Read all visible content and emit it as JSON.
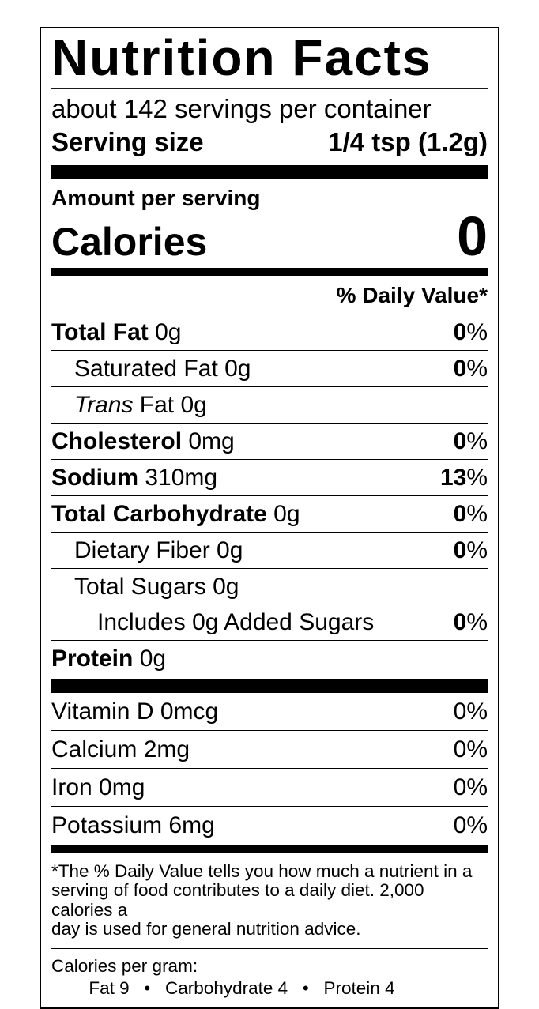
{
  "header": {
    "title": "Nutrition Facts",
    "servings_per_container": "about 142 servings per container",
    "serving_size_label": "Serving size",
    "serving_size_value": "1/4 tsp (1.2g)"
  },
  "calories": {
    "amount_per_serving_label": "Amount per serving",
    "label": "Calories",
    "value": "0"
  },
  "daily_value_header": "% Daily Value*",
  "nutrients": [
    {
      "name": "Total Fat",
      "bold": true,
      "amount": "0g",
      "dv": "0%",
      "dv_bold": true,
      "indent": 0,
      "divider_below": "full"
    },
    {
      "name": "Saturated Fat",
      "bold": false,
      "amount": "0g",
      "dv": "0%",
      "dv_bold": true,
      "indent": 1,
      "divider_below": "full"
    },
    {
      "name_italic": "Trans",
      "name": "Fat",
      "bold": false,
      "amount": "0g",
      "dv": "",
      "dv_bold": false,
      "indent": 1,
      "divider_below": "full"
    },
    {
      "name": "Cholesterol",
      "bold": true,
      "amount": "0mg",
      "dv": "0%",
      "dv_bold": true,
      "indent": 0,
      "divider_below": "full"
    },
    {
      "name": "Sodium",
      "bold": true,
      "amount": "310mg",
      "dv": "13%",
      "dv_bold": true,
      "indent": 0,
      "divider_below": "full"
    },
    {
      "name": "Total Carbohydrate",
      "bold": true,
      "amount": "0g",
      "dv": "0%",
      "dv_bold": true,
      "indent": 0,
      "divider_below": "full"
    },
    {
      "name": "Dietary Fiber",
      "bold": false,
      "amount": "0g",
      "dv": "0%",
      "dv_bold": true,
      "indent": 1,
      "divider_below": "full"
    },
    {
      "name": "Total Sugars",
      "bold": false,
      "amount": "0g",
      "dv": "",
      "dv_bold": false,
      "indent": 1,
      "divider_below": "indent"
    },
    {
      "name": "Includes 0g Added Sugars",
      "bold": false,
      "amount": "",
      "dv": "0%",
      "dv_bold": true,
      "indent": 2,
      "divider_below": "full"
    },
    {
      "name": "Protein",
      "bold": true,
      "amount": "0g",
      "dv": "",
      "dv_bold": false,
      "indent": 0,
      "divider_below": "none"
    }
  ],
  "micronutrients": [
    {
      "name": "Vitamin D",
      "amount": "0mcg",
      "dv": "0%",
      "divider_below": "full"
    },
    {
      "name": "Calcium",
      "amount": "2mg",
      "dv": "0%",
      "divider_below": "full"
    },
    {
      "name": "Iron",
      "amount": "0mg",
      "dv": "0%",
      "divider_below": "full"
    },
    {
      "name": "Potassium",
      "amount": "6mg",
      "dv": "0%",
      "divider_below": "none"
    }
  ],
  "footnote_lines": [
    "*The % Daily Value tells you how much a nutrient in a",
    "serving of food contributes to a daily diet. 2,000 calories a",
    "day is used for general nutrition advice."
  ],
  "calories_per_gram": {
    "label": "Calories per gram:",
    "values": "Fat 9   •   Carbohydrate 4   •   Protein 4"
  },
  "colors": {
    "text": "#000000",
    "background": "#ffffff",
    "border": "#000000"
  }
}
